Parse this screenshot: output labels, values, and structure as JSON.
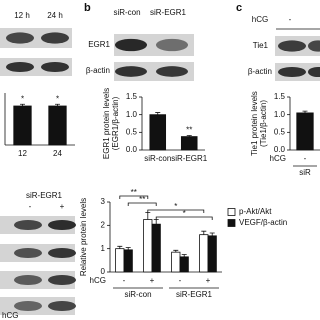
{
  "blots": {
    "a": {
      "headers": [
        "12 h",
        "24 h"
      ]
    },
    "b": {
      "label": "b",
      "headers": [
        "siR-con",
        "siR-EGR1"
      ],
      "rows": [
        "EGR1",
        "β-actin"
      ]
    },
    "c": {
      "label": "c",
      "headers": [
        "hCG",
        "-"
      ],
      "rows": [
        "Tie1",
        "β-actin"
      ]
    },
    "d": {
      "header": "siR-EGR1",
      "lanes": [
        "-",
        "+"
      ],
      "footer": "hCG"
    }
  },
  "chart_data": [
    {
      "type": "bar",
      "categories": [
        "12",
        "24"
      ],
      "values": [
        0.9,
        0.9
      ],
      "errors": [
        0.04,
        0.04
      ],
      "color": "#111111",
      "ylim": [
        0,
        1.2
      ],
      "annotations": [
        "*",
        "*"
      ]
    },
    {
      "type": "bar",
      "y_label": [
        "EGR1 protein levels",
        "(EGR1/β-actin)"
      ],
      "categories": [
        "siR-con",
        "siR-EGR1"
      ],
      "values": [
        1.0,
        0.38
      ],
      "errors": [
        0.06,
        0.03
      ],
      "color": "#111111",
      "ylim": [
        0,
        1.5
      ],
      "yticks": [
        {
          "value": 0,
          "label": "0.0"
        },
        {
          "value": 0.5,
          "label": "0.5"
        },
        {
          "value": 1,
          "label": "1.0"
        },
        {
          "value": 1.5,
          "label": "1.5"
        }
      ],
      "annotations": [
        "**"
      ]
    },
    {
      "type": "bar",
      "y_label": [
        "Tie1 protein levels",
        "(Tie1/β-actin)"
      ],
      "x_row_label": "hCG",
      "categories": [
        "-"
      ],
      "group_labels": [
        "siR"
      ],
      "values": [
        1.05
      ],
      "errors": [
        0.05
      ],
      "color": "#111111",
      "ylim": [
        0,
        1.5
      ],
      "yticks": [
        {
          "value": 0,
          "label": "0.0"
        },
        {
          "value": 0.5,
          "label": "0.5"
        },
        {
          "value": 1,
          "label": "1.0"
        },
        {
          "value": 1.5,
          "label": "1.5"
        }
      ]
    },
    {
      "type": "bar",
      "y_label": [
        "Relative protein levels"
      ],
      "x_row_label": "hCG",
      "categories": [
        "-",
        "+",
        "-",
        "+"
      ],
      "group_labels": [
        "siR-con",
        "siR-EGR1"
      ],
      "ylim": [
        0,
        3
      ],
      "yticks": [
        0,
        1,
        2,
        3
      ],
      "series": [
        {
          "name": "p-Akt/Akt",
          "color": "#ffffff",
          "values": [
            1.0,
            2.25,
            0.85,
            1.6
          ],
          "errors": [
            0.1,
            0.3,
            0.08,
            0.15
          ]
        },
        {
          "name": "VEGF/β-actin",
          "color": "#111111",
          "values": [
            0.95,
            2.05,
            0.65,
            1.55
          ],
          "errors": [
            0.1,
            0.2,
            0.1,
            0.12
          ]
        }
      ],
      "annotations": [
        "**",
        "**",
        "*",
        "*"
      ]
    }
  ]
}
